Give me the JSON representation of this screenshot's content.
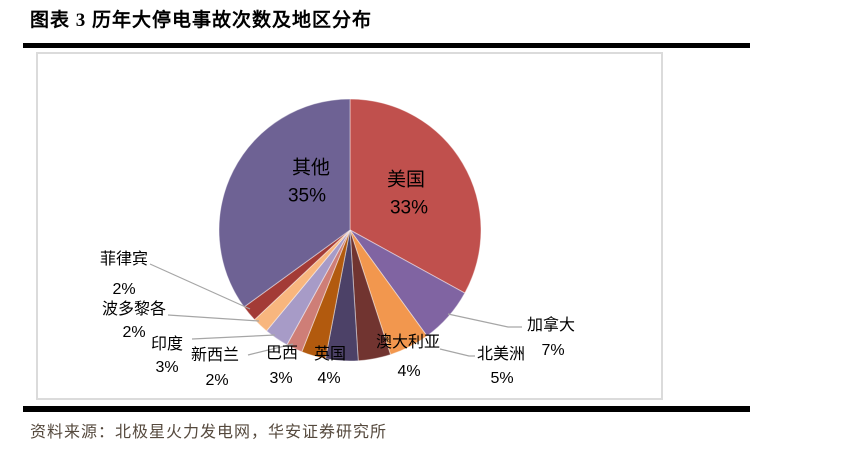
{
  "title": "图表 3 历年大停电事故次数及地区分布",
  "source": "资料来源：北极星火力发电网，华安证券研究所",
  "chart_data": {
    "type": "pie",
    "title": "历年大停电事故次数及地区分布",
    "legend_position": "none",
    "start_angle_deg": 0,
    "direction": "clockwise",
    "slices": [
      {
        "name": "美国",
        "value": 33,
        "pct_label": "33%",
        "color": "#C0504D"
      },
      {
        "name": "加拿大",
        "value": 7,
        "pct_label": "7%",
        "color": "#8064A2"
      },
      {
        "name": "北美洲",
        "value": 5,
        "pct_label": "5%",
        "color": "#F2974E"
      },
      {
        "name": "澳大利亚",
        "value": 4,
        "pct_label": "4%",
        "color": "#713430"
      },
      {
        "name": "英国",
        "value": 4,
        "pct_label": "4%",
        "color": "#4C4167"
      },
      {
        "name": "巴西",
        "value": 3,
        "pct_label": "3%",
        "color": "#B25A0E"
      },
      {
        "name": "新西兰",
        "value": 2,
        "pct_label": "2%",
        "color": "#CE7E77"
      },
      {
        "name": "印度",
        "value": 3,
        "pct_label": "3%",
        "color": "#A79BC7"
      },
      {
        "name": "波多黎各",
        "value": 2,
        "pct_label": "2%",
        "color": "#F8B67E"
      },
      {
        "name": "菲律宾",
        "value": 2,
        "pct_label": "2%",
        "color": "#A33B36"
      },
      {
        "name": "其他",
        "value": 35,
        "pct_label": "35%",
        "color": "#6E6294"
      }
    ],
    "colors": {
      "leader_line": "#A6A6A6",
      "frame_border": "#DBDBDB",
      "divider": "#000000",
      "label_text": "#000000",
      "source_text": "#55493D"
    }
  }
}
